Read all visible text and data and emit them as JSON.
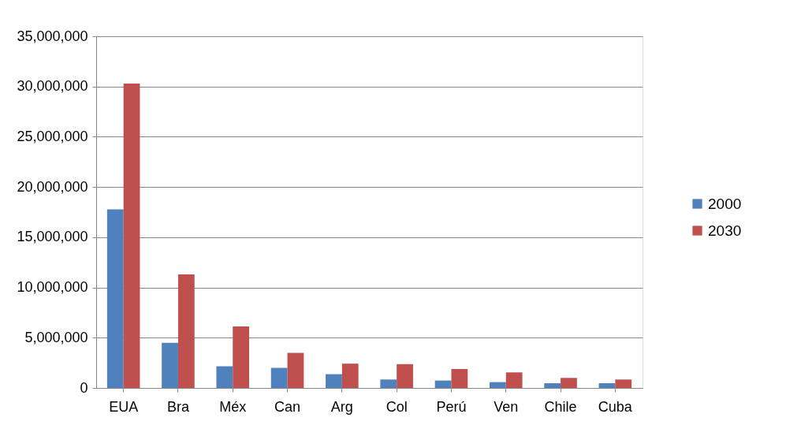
{
  "chart_data": {
    "type": "bar",
    "categories": [
      "EUA",
      "Bra",
      "Méx",
      "Can",
      "Arg",
      "Col",
      "Perú",
      "Ven",
      "Chile",
      "Cuba"
    ],
    "series": [
      {
        "name": "2000",
        "color": "#4f81bd",
        "values": [
          17780000,
          4500000,
          2160000,
          2000000,
          1370000,
          840000,
          740000,
          580000,
          470000,
          470000
        ]
      },
      {
        "name": "2030",
        "color": "#c0504d",
        "values": [
          30300000,
          11300000,
          6130000,
          3500000,
          2420000,
          2370000,
          1890000,
          1550000,
          1000000,
          840000
        ]
      }
    ],
    "ylim": [
      0,
      35000000
    ],
    "yticks": [
      0,
      {
        "value": 5000000,
        "label": "5,000,000"
      },
      {
        "value": 10000000,
        "label": "10,000,000"
      },
      {
        "value": 15000000,
        "label": "15,000,000"
      },
      {
        "value": 20000000,
        "label": "20,000,000"
      },
      {
        "value": 25000000,
        "label": "25,000,000"
      },
      {
        "value": 30000000,
        "label": "30,000,000"
      },
      {
        "value": 35000000,
        "label": "35,000,000"
      }
    ],
    "grid": "y",
    "legend": "right"
  }
}
